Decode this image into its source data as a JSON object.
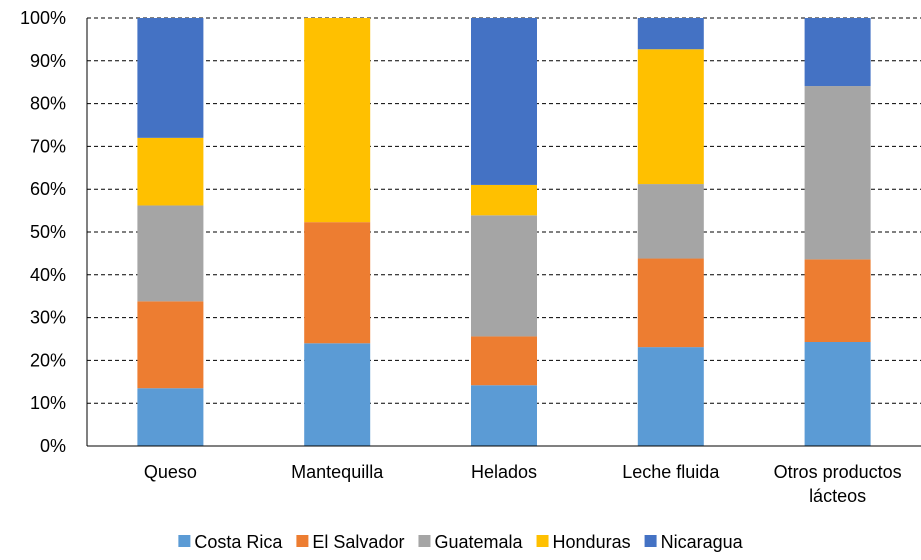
{
  "chart_data": {
    "type": "bar",
    "stacked": true,
    "percent": true,
    "title": "",
    "xlabel": "",
    "ylabel": "",
    "ylim": [
      0,
      100
    ],
    "yticks": [
      "0%",
      "10%",
      "20%",
      "30%",
      "40%",
      "50%",
      "60%",
      "70%",
      "80%",
      "90%",
      "100%"
    ],
    "grid": "horizontal-dashed",
    "legend_position": "bottom",
    "categories": [
      [
        "Queso"
      ],
      [
        "Mantequilla"
      ],
      [
        "Helados"
      ],
      [
        "Leche fluida"
      ],
      [
        "Otros productos",
        "lácteos"
      ]
    ],
    "series": [
      {
        "name": "Costa Rica",
        "color": "#5B9BD5",
        "values": [
          13.5,
          24.0,
          14.2,
          23.1,
          24.3
        ]
      },
      {
        "name": "El Salvador",
        "color": "#ED7D31",
        "values": [
          20.3,
          28.3,
          11.4,
          20.7,
          19.3
        ]
      },
      {
        "name": "Guatemala",
        "color": "#A5A5A5",
        "values": [
          22.4,
          0.0,
          28.3,
          17.4,
          40.5
        ]
      },
      {
        "name": "Honduras",
        "color": "#FFC000",
        "values": [
          15.8,
          47.7,
          7.1,
          31.5,
          0.0
        ]
      },
      {
        "name": "Nicaragua",
        "color": "#4472C4",
        "values": [
          28.0,
          0.0,
          39.0,
          7.3,
          15.9
        ]
      }
    ]
  }
}
